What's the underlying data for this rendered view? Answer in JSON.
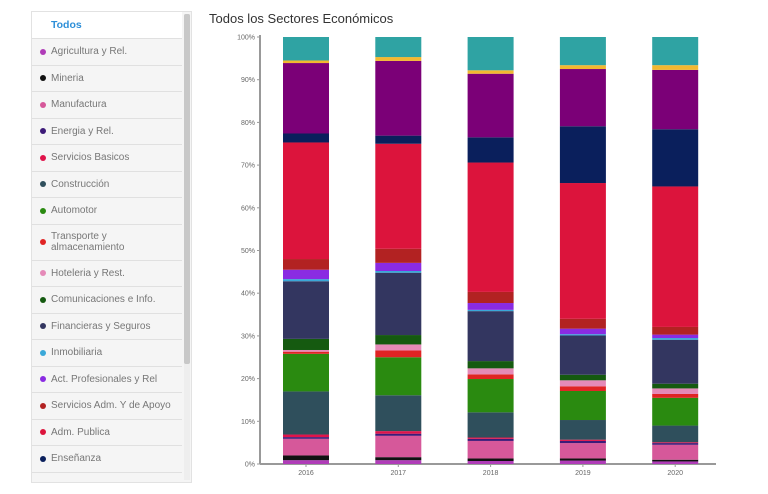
{
  "sidebar": {
    "all_label": "Todos",
    "items": [
      {
        "label": "Agricultura y Rel.",
        "color": "#b03cb8"
      },
      {
        "label": "Mineria",
        "color": "#111111"
      },
      {
        "label": "Manufactura",
        "color": "#d6589a"
      },
      {
        "label": "Energia y Rel.",
        "color": "#3d1a78"
      },
      {
        "label": "Servicios Basicos",
        "color": "#e0134a"
      },
      {
        "label": "Construcción",
        "color": "#2f4f5c"
      },
      {
        "label": "Automotor",
        "color": "#2a8a10"
      },
      {
        "label": "Transporte y almacenamiento",
        "color": "#e02424"
      },
      {
        "label": "Hoteleria y Rest.",
        "color": "#e58ab8"
      },
      {
        "label": "Comunicaciones e Info.",
        "color": "#155a10"
      },
      {
        "label": "Financieras y Seguros",
        "color": "#333660"
      },
      {
        "label": "Inmobiliaria",
        "color": "#3aa8d8"
      },
      {
        "label": "Act. Profesionales y Rel",
        "color": "#8a2be2"
      },
      {
        "label": "Servicios Adm. Y de Apoyo",
        "color": "#b22222"
      },
      {
        "label": "Adm. Publica",
        "color": "#dc143c"
      },
      {
        "label": "Enseñanza",
        "color": "#0a1f5c"
      }
    ]
  },
  "chart_data": {
    "type": "bar",
    "stacked": "percent",
    "title": "Todos los Sectores Económicos",
    "categories": [
      "2016",
      "2017",
      "2018",
      "2019",
      "2020"
    ],
    "ylim": [
      0,
      100
    ],
    "yticks": [
      "0%",
      "10%",
      "20%",
      "30%",
      "40%",
      "50%",
      "60%",
      "70%",
      "80%",
      "90%",
      "100%"
    ],
    "grid": false,
    "series": [
      {
        "name": "Agricultura y Rel.",
        "color": "#b03cb8",
        "values": [
          0.9,
          0.9,
          0.7,
          0.8,
          0.6
        ]
      },
      {
        "name": "Mineria",
        "color": "#111111",
        "values": [
          1.1,
          0.7,
          0.6,
          0.5,
          0.4
        ]
      },
      {
        "name": "Manufactura",
        "color": "#d6589a",
        "values": [
          3.9,
          5.0,
          4.1,
          3.6,
          3.5
        ]
      },
      {
        "name": "Energia y Rel.",
        "color": "#3d1a78",
        "values": [
          0.4,
          0.5,
          0.5,
          0.5,
          0.4
        ]
      },
      {
        "name": "Servicios Basicos",
        "color": "#e0134a",
        "values": [
          0.6,
          0.6,
          0.3,
          0.3,
          0.2
        ]
      },
      {
        "name": "Construcción",
        "color": "#2f4f5c",
        "values": [
          10.1,
          8.4,
          5.9,
          4.6,
          3.9
        ]
      },
      {
        "name": "Automotor",
        "color": "#2a8a10",
        "values": [
          8.8,
          8.9,
          7.8,
          6.8,
          6.5
        ]
      },
      {
        "name": "Transporte y almacenamiento",
        "color": "#e02424",
        "values": [
          0.5,
          1.6,
          1.1,
          1.1,
          0.9
        ]
      },
      {
        "name": "Hoteleria y Rest.",
        "color": "#e58ab8",
        "values": [
          0.4,
          1.4,
          1.4,
          1.4,
          1.3
        ]
      },
      {
        "name": "Comunicaciones e Info.",
        "color": "#155a10",
        "values": [
          2.6,
          2.2,
          1.7,
          1.3,
          1.1
        ]
      },
      {
        "name": "Financieras y Seguros",
        "color": "#333660",
        "values": [
          13.5,
          14.6,
          11.7,
          9.2,
          10.3
        ]
      },
      {
        "name": "Inmobiliaria",
        "color": "#3aa8d8",
        "values": [
          0.5,
          0.4,
          0.3,
          0.3,
          0.4
        ]
      },
      {
        "name": "Act. Profesionales y Rel",
        "color": "#8a2be2",
        "values": [
          2.2,
          1.9,
          1.6,
          1.3,
          0.8
        ]
      },
      {
        "name": "Servicios Adm. Y de Apoyo",
        "color": "#b22222",
        "values": [
          2.5,
          3.3,
          2.6,
          2.3,
          1.8
        ]
      },
      {
        "name": "Adm. Publica",
        "color": "#dc143c",
        "values": [
          27.3,
          24.6,
          30.3,
          31.8,
          32.9
        ]
      },
      {
        "name": "Enseñanza",
        "color": "#0a1f5c",
        "values": [
          2.1,
          1.9,
          5.9,
          13.3,
          13.4
        ]
      },
      {
        "name": "",
        "color": "#7b0077",
        "values": [
          16.5,
          17.5,
          14.9,
          13.4,
          13.9
        ]
      },
      {
        "name": "",
        "color": "#f2b830",
        "values": [
          0.6,
          0.9,
          0.8,
          0.9,
          1.1
        ]
      },
      {
        "name": "",
        "color": "#2fa3a3",
        "values": [
          5.5,
          4.7,
          7.8,
          6.6,
          6.6
        ]
      }
    ]
  }
}
